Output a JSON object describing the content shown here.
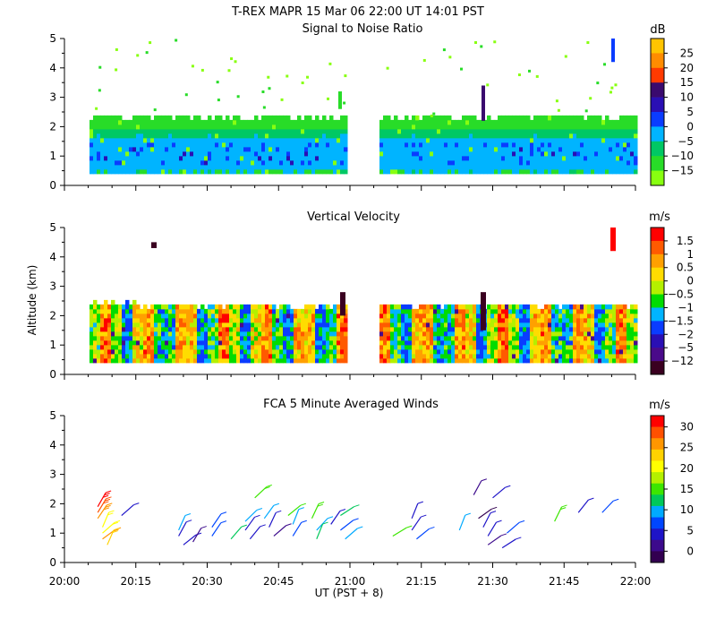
{
  "header": {
    "title": "T-REX   MAPR 15 Mar 06   22:00 UT   14:01   PST"
  },
  "shared": {
    "x_ticks": [
      "20:00",
      "20:15",
      "20:30",
      "20:45",
      "21:00",
      "21:15",
      "21:30",
      "21:45",
      "22:00"
    ],
    "x_label": "UT  (PST + 8)",
    "y_label": "Altitude (km)",
    "y_ticks": [
      "0",
      "1",
      "2",
      "3",
      "4",
      "5"
    ]
  },
  "chart_data": [
    {
      "type": "heatmap",
      "title": "Signal to Noise Ratio",
      "units": "dB",
      "xlim": [
        "20:00",
        "22:00"
      ],
      "ylim": [
        0,
        5
      ],
      "colorbar_ticks": [
        "25",
        "20",
        "15",
        "10",
        "5",
        "0",
        "−5",
        "−10",
        "−15"
      ],
      "colorbar_colors": [
        "#ffc400",
        "#ff8c00",
        "#ff3a00",
        "#3a0a6e",
        "#2a0fb4",
        "#0a3cff",
        "#00b4ff",
        "#00c864",
        "#28dc28",
        "#88ff10"
      ],
      "data_gaps": [
        [
          "21:00",
          "21:05"
        ]
      ],
      "echo_top_km": 2.2,
      "echo_bottom_km": 0.4
    },
    {
      "type": "heatmap",
      "title": "Vertical Velocity",
      "units": "m/s",
      "xlim": [
        "20:00",
        "22:00"
      ],
      "ylim": [
        0,
        5
      ],
      "colorbar_ticks": [
        "1.5",
        "1",
        "0.5",
        "0",
        "−0.5",
        "−1",
        "−1.5",
        "−2",
        "−5",
        "−12"
      ],
      "colorbar_colors": [
        "#ff0000",
        "#ff5a00",
        "#ffa000",
        "#ffdc00",
        "#b4f000",
        "#00dc00",
        "#00b4ff",
        "#0a3cff",
        "#2a0fb4",
        "#4a0a8a",
        "#3a0020"
      ],
      "data_gaps": [
        [
          "21:00",
          "21:05"
        ]
      ],
      "echo_top_km": 2.2,
      "echo_bottom_km": 0.4
    },
    {
      "type": "scatter",
      "title": "FCA 5 Minute Averaged Winds",
      "units": "m/s",
      "xlim": [
        "20:00",
        "22:00"
      ],
      "ylim": [
        0,
        5
      ],
      "colorbar_ticks": [
        "30",
        "25",
        "20",
        "15",
        "10",
        "5",
        "0"
      ],
      "colorbar_colors": [
        "#ff0000",
        "#ff5000",
        "#ff9600",
        "#ffd200",
        "#ffff00",
        "#b4f000",
        "#3ce600",
        "#00c85a",
        "#00aaff",
        "#0046ff",
        "#1e14c8",
        "#3c0a8c",
        "#320050"
      ],
      "wind_barbs": [
        {
          "time": "20:07",
          "alt_km": 1.9,
          "speed": 29
        },
        {
          "time": "20:07",
          "alt_km": 1.7,
          "speed": 28
        },
        {
          "time": "20:07",
          "alt_km": 1.5,
          "speed": 26
        },
        {
          "time": "20:08",
          "alt_km": 1.2,
          "speed": 21
        },
        {
          "time": "20:08",
          "alt_km": 1.0,
          "speed": 20
        },
        {
          "time": "20:08",
          "alt_km": 0.8,
          "speed": 24
        },
        {
          "time": "20:09",
          "alt_km": 0.6,
          "speed": 22
        },
        {
          "time": "20:12",
          "alt_km": 1.6,
          "speed": 5
        },
        {
          "time": "20:24",
          "alt_km": 1.1,
          "speed": 9
        },
        {
          "time": "20:24",
          "alt_km": 0.9,
          "speed": 6
        },
        {
          "time": "20:25",
          "alt_km": 0.6,
          "speed": 4
        },
        {
          "time": "20:27",
          "alt_km": 0.7,
          "speed": 3
        },
        {
          "time": "20:31",
          "alt_km": 1.2,
          "speed": 7
        },
        {
          "time": "20:31",
          "alt_km": 0.9,
          "speed": 8
        },
        {
          "time": "20:35",
          "alt_km": 0.8,
          "speed": 13
        },
        {
          "time": "20:38",
          "alt_km": 1.4,
          "speed": 9
        },
        {
          "time": "20:38",
          "alt_km": 1.1,
          "speed": 5
        },
        {
          "time": "20:39",
          "alt_km": 0.8,
          "speed": 4
        },
        {
          "time": "20:40",
          "alt_km": 2.2,
          "speed": 16
        },
        {
          "time": "20:42",
          "alt_km": 1.5,
          "speed": 10
        },
        {
          "time": "20:43",
          "alt_km": 1.2,
          "speed": 6
        },
        {
          "time": "20:44",
          "alt_km": 0.9,
          "speed": 3
        },
        {
          "time": "20:47",
          "alt_km": 1.6,
          "speed": 14
        },
        {
          "time": "20:48",
          "alt_km": 1.3,
          "speed": 11
        },
        {
          "time": "20:48",
          "alt_km": 0.9,
          "speed": 8
        },
        {
          "time": "20:52",
          "alt_km": 1.5,
          "speed": 15
        },
        {
          "time": "20:53",
          "alt_km": 1.1,
          "speed": 9
        },
        {
          "time": "20:53",
          "alt_km": 0.8,
          "speed": 12
        },
        {
          "time": "20:56",
          "alt_km": 1.3,
          "speed": 4
        },
        {
          "time": "20:58",
          "alt_km": 1.6,
          "speed": 13
        },
        {
          "time": "20:58",
          "alt_km": 1.1,
          "speed": 7
        },
        {
          "time": "20:59",
          "alt_km": 0.8,
          "speed": 10
        },
        {
          "time": "21:09",
          "alt_km": 0.9,
          "speed": 14
        },
        {
          "time": "21:13",
          "alt_km": 1.5,
          "speed": 6
        },
        {
          "time": "21:13",
          "alt_km": 1.1,
          "speed": 4
        },
        {
          "time": "21:14",
          "alt_km": 0.8,
          "speed": 8
        },
        {
          "time": "21:23",
          "alt_km": 1.1,
          "speed": 10
        },
        {
          "time": "21:26",
          "alt_km": 2.3,
          "speed": 3
        },
        {
          "time": "21:27",
          "alt_km": 1.5,
          "speed": 1
        },
        {
          "time": "21:28",
          "alt_km": 1.2,
          "speed": 4
        },
        {
          "time": "21:29",
          "alt_km": 0.9,
          "speed": 5
        },
        {
          "time": "21:29",
          "alt_km": 0.6,
          "speed": 3
        },
        {
          "time": "21:30",
          "alt_km": 2.2,
          "speed": 4
        },
        {
          "time": "21:32",
          "alt_km": 0.5,
          "speed": 6
        },
        {
          "time": "21:33",
          "alt_km": 1.0,
          "speed": 8
        },
        {
          "time": "21:43",
          "alt_km": 1.4,
          "speed": 15
        },
        {
          "time": "21:48",
          "alt_km": 1.7,
          "speed": 4
        },
        {
          "time": "21:53",
          "alt_km": 1.7,
          "speed": 8
        }
      ]
    }
  ]
}
